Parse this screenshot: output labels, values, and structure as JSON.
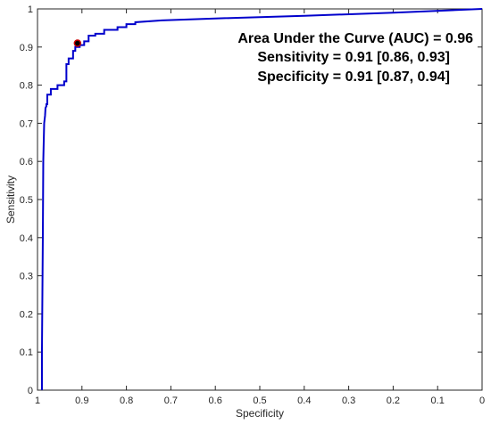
{
  "chart_data": {
    "type": "line",
    "title": "",
    "xlabel": "Specificity",
    "ylabel": "Sensitivity",
    "x_reversed": true,
    "xlim": [
      1,
      0
    ],
    "ylim": [
      0,
      1
    ],
    "grid": false,
    "x_ticks": [
      1,
      0.9,
      0.8,
      0.7,
      0.6,
      0.5,
      0.4,
      0.3,
      0.2,
      0.1,
      0
    ],
    "x_tick_labels": [
      "1",
      "0.9",
      "0.8",
      "0.7",
      "0.6",
      "0.5",
      "0.4",
      "0.3",
      "0.2",
      "0.1",
      "0"
    ],
    "y_ticks": [
      0,
      0.1,
      0.2,
      0.3,
      0.4,
      0.5,
      0.6,
      0.7,
      0.8,
      0.9,
      1
    ],
    "y_tick_labels": [
      "0",
      "0.1",
      "0.2",
      "0.3",
      "0.4",
      "0.5",
      "0.6",
      "0.7",
      "0.8",
      "0.9",
      "1"
    ],
    "annotations": [
      "Area Under the Curve (AUC) = 0.96",
      "Sensitivity = 0.91 [0.86, 0.93]",
      "Specificity = 0.91 [0.87, 0.94]"
    ],
    "series": [
      {
        "color": "#0000cc",
        "x": [
          0.99,
          0.99,
          0.988,
          0.987,
          0.985,
          0.983,
          0.982,
          0.98,
          0.98,
          0.978,
          0.978,
          0.97,
          0.97,
          0.955,
          0.955,
          0.94,
          0.94,
          0.935,
          0.935,
          0.93,
          0.93,
          0.92,
          0.92,
          0.915,
          0.915,
          0.905,
          0.905,
          0.895,
          0.895,
          0.885,
          0.885,
          0.87,
          0.87,
          0.85,
          0.85,
          0.82,
          0.82,
          0.8,
          0.8,
          0.78,
          0.78,
          0.72,
          0.6,
          0.4,
          0.2,
          0
        ],
        "y": [
          0,
          0.1,
          0.4,
          0.6,
          0.7,
          0.72,
          0.74,
          0.745,
          0.75,
          0.75,
          0.775,
          0.775,
          0.79,
          0.79,
          0.8,
          0.8,
          0.81,
          0.81,
          0.855,
          0.855,
          0.87,
          0.87,
          0.89,
          0.89,
          0.9,
          0.9,
          0.905,
          0.905,
          0.915,
          0.915,
          0.93,
          0.93,
          0.935,
          0.935,
          0.945,
          0.945,
          0.952,
          0.952,
          0.96,
          0.96,
          0.965,
          0.97,
          0.975,
          0.982,
          0.99,
          1
        ]
      }
    ],
    "operating_point": {
      "x": 0.91,
      "y": 0.91,
      "fill": "#000000",
      "stroke": "#cc0000"
    },
    "axis_color": "#262626"
  }
}
